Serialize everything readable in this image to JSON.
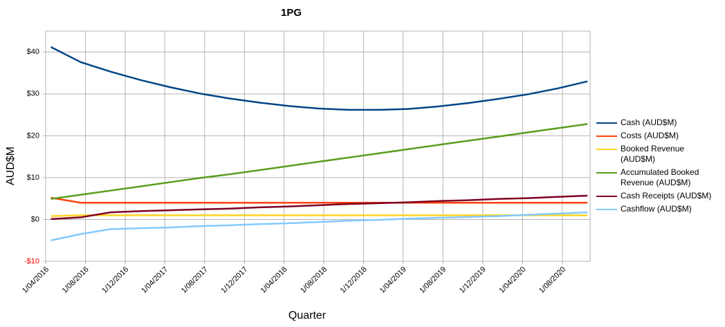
{
  "chart_data": {
    "type": "line",
    "title": "1PG",
    "x_label": "Quarter",
    "y_label": "AUD$M",
    "x": [
      "2016-04-17",
      "2016-07-17",
      "2016-10-17",
      "2017-01-17",
      "2017-04-17",
      "2017-07-17",
      "2017-10-17",
      "2018-01-17",
      "2018-04-17",
      "2018-07-17",
      "2018-10-17",
      "2019-01-17",
      "2019-04-17",
      "2019-07-17",
      "2019-10-17",
      "2020-01-17",
      "2020-04-17",
      "2020-07-17",
      "2020-10-17"
    ],
    "series": [
      {
        "name": "Cash (AUD$M)",
        "color": "#004586",
        "values": [
          41.2,
          37.6,
          35.3,
          33.3,
          31.6,
          30.1,
          28.9,
          27.9,
          27.1,
          26.5,
          26.2,
          26.2,
          26.4,
          27.0,
          27.8,
          28.8,
          29.9,
          31.3,
          33.0
        ]
      },
      {
        "name": "Costs (AUD$M)",
        "color": "#ff420e",
        "values": [
          5.2,
          4.0,
          4.0,
          4.0,
          4.0,
          4.0,
          4.0,
          4.0,
          4.0,
          4.0,
          4.0,
          4.0,
          4.0,
          4.0,
          4.0,
          4.0,
          4.0,
          4.0,
          4.0
        ]
      },
      {
        "name": "Booked Revenue (AUD$M)",
        "color": "#ffd320",
        "values": [
          0.8,
          1.0,
          1.0,
          1.0,
          1.0,
          1.0,
          1.0,
          1.0,
          1.0,
          1.0,
          1.0,
          1.0,
          1.0,
          1.0,
          1.0,
          1.0,
          1.0,
          1.0,
          1.0
        ]
      },
      {
        "name": "Accumulated Booked Revenue (AUD$M)",
        "color": "#579d1c",
        "values": [
          4.9,
          5.9,
          6.9,
          7.9,
          8.9,
          9.9,
          10.8,
          11.8,
          12.8,
          13.8,
          14.8,
          15.8,
          16.8,
          17.8,
          18.8,
          19.8,
          20.8,
          21.8,
          22.8
        ]
      },
      {
        "name": "Cash Receipts (AUD$M)",
        "color": "#7e0021",
        "values": [
          0.1,
          0.5,
          1.7,
          2.0,
          2.2,
          2.4,
          2.6,
          2.9,
          3.1,
          3.4,
          3.7,
          3.9,
          4.1,
          4.4,
          4.6,
          4.9,
          5.1,
          5.4,
          5.7
        ]
      },
      {
        "name": "Cashflow (AUD$M)",
        "color": "#83caff",
        "values": [
          -5.0,
          -3.5,
          -2.3,
          -2.1,
          -1.9,
          -1.6,
          -1.4,
          -1.1,
          -0.9,
          -0.6,
          -0.3,
          -0.1,
          0.2,
          0.4,
          0.6,
          0.8,
          1.1,
          1.4,
          1.7
        ]
      }
    ],
    "xlim": [
      "2016-04-01",
      "2020-10-25"
    ],
    "xticks": [
      {
        "value": "2016-04-01",
        "label": "1/04/2016"
      },
      {
        "value": "2016-08-01",
        "label": "1/08/2016"
      },
      {
        "value": "2016-12-01",
        "label": "1/12/2016"
      },
      {
        "value": "2017-04-01",
        "label": "1/04/2017"
      },
      {
        "value": "2017-08-01",
        "label": "1/08/2017"
      },
      {
        "value": "2017-12-01",
        "label": "1/12/2017"
      },
      {
        "value": "2018-04-01",
        "label": "1/04/2018"
      },
      {
        "value": "2018-08-01",
        "label": "1/08/2018"
      },
      {
        "value": "2018-12-01",
        "label": "1/12/2018"
      },
      {
        "value": "2019-04-01",
        "label": "1/04/2019"
      },
      {
        "value": "2019-08-01",
        "label": "1/08/2019"
      },
      {
        "value": "2019-12-01",
        "label": "1/12/2019"
      },
      {
        "value": "2020-04-01",
        "label": "1/04/2020"
      },
      {
        "value": "2020-08-01",
        "label": "1/08/2020"
      }
    ],
    "ylim": [
      -10,
      45
    ],
    "yticks": [
      {
        "value": -10,
        "label": "-$10"
      },
      {
        "value": 0,
        "label": "$0"
      },
      {
        "value": 10,
        "label": "$10"
      },
      {
        "value": 20,
        "label": "$20"
      },
      {
        "value": 30,
        "label": "$30"
      },
      {
        "value": 40,
        "label": "$40"
      }
    ],
    "negative_tick_color": "#ff0000",
    "grid": true,
    "legend": "right"
  }
}
